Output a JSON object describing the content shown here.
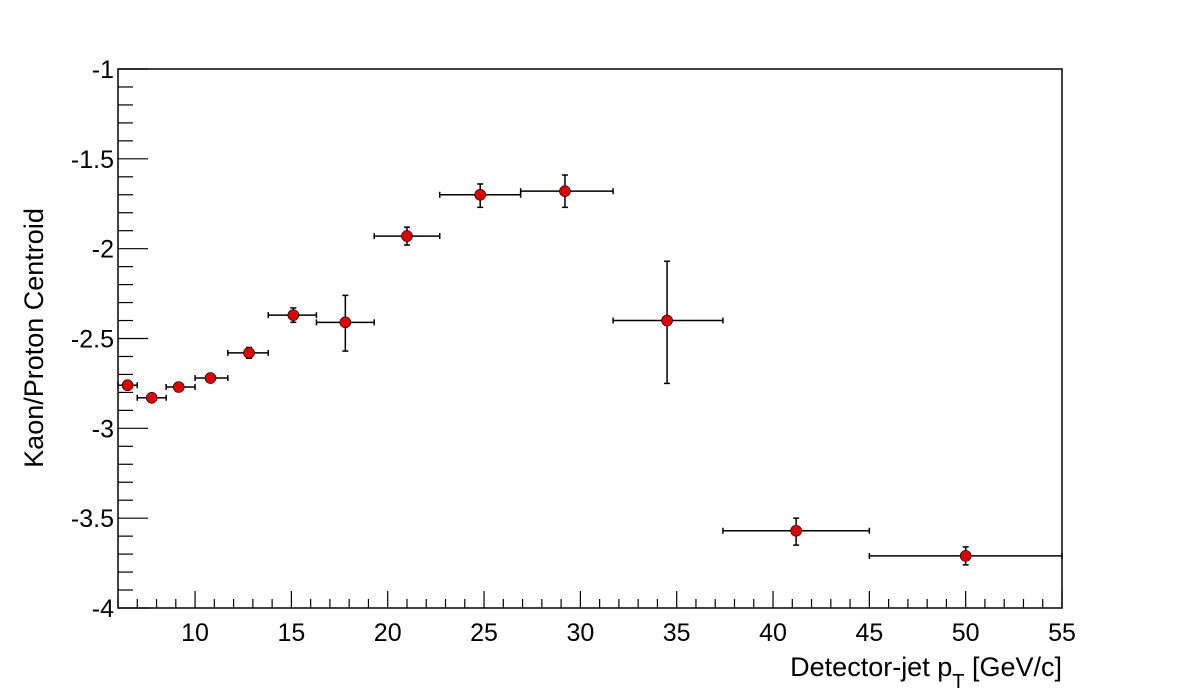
{
  "chart_data": {
    "type": "scatter",
    "title": "",
    "xlabel": "Detector-jet p",
    "xlabel_sub": "T",
    "xlabel_unit": " [GeV/c]",
    "ylabel": "Kaon/Proton Centroid",
    "xlim": [
      6,
      55
    ],
    "ylim": [
      -4,
      -1
    ],
    "x_ticks": [
      10,
      15,
      20,
      25,
      30,
      35,
      40,
      45,
      50,
      55
    ],
    "y_ticks": [
      -4,
      -3.5,
      -3,
      -2.5,
      -2,
      -1.5,
      -1
    ],
    "x_tick_labels": [
      "10",
      "15",
      "20",
      "25",
      "30",
      "35",
      "40",
      "45",
      "50",
      "55"
    ],
    "y_tick_labels": [
      "-4",
      "-3.5",
      "-3",
      "-2.5",
      "-2",
      "-1.5",
      "-1"
    ],
    "grid": false,
    "marker_color": "#dd0000",
    "series": [
      {
        "points": [
          {
            "x": 6.5,
            "y": -2.76,
            "xlo": 6.0,
            "xhi": 7.0,
            "ylo": -2.78,
            "yhi": -2.74
          },
          {
            "x": 7.75,
            "y": -2.83,
            "xlo": 7.0,
            "xhi": 8.5,
            "ylo": -2.85,
            "yhi": -2.81
          },
          {
            "x": 9.15,
            "y": -2.77,
            "xlo": 8.5,
            "xhi": 10.0,
            "ylo": -2.79,
            "yhi": -2.75
          },
          {
            "x": 10.8,
            "y": -2.72,
            "xlo": 10.0,
            "xhi": 11.7,
            "ylo": -2.74,
            "yhi": -2.7
          },
          {
            "x": 12.8,
            "y": -2.58,
            "xlo": 11.7,
            "xhi": 13.8,
            "ylo": -2.61,
            "yhi": -2.55
          },
          {
            "x": 15.1,
            "y": -2.37,
            "xlo": 13.8,
            "xhi": 16.3,
            "ylo": -2.41,
            "yhi": -2.33
          },
          {
            "x": 17.8,
            "y": -2.41,
            "xlo": 16.3,
            "xhi": 19.3,
            "ylo": -2.57,
            "yhi": -2.26
          },
          {
            "x": 21.0,
            "y": -1.93,
            "xlo": 19.3,
            "xhi": 22.7,
            "ylo": -1.98,
            "yhi": -1.88
          },
          {
            "x": 24.8,
            "y": -1.7,
            "xlo": 22.7,
            "xhi": 26.9,
            "ylo": -1.77,
            "yhi": -1.64
          },
          {
            "x": 29.2,
            "y": -1.68,
            "xlo": 26.9,
            "xhi": 31.7,
            "ylo": -1.77,
            "yhi": -1.59
          },
          {
            "x": 34.5,
            "y": -2.4,
            "xlo": 31.7,
            "xhi": 37.4,
            "ylo": -2.75,
            "yhi": -2.07
          },
          {
            "x": 41.2,
            "y": -3.57,
            "xlo": 37.4,
            "xhi": 45.0,
            "ylo": -3.65,
            "yhi": -3.5
          },
          {
            "x": 50.0,
            "y": -3.71,
            "xlo": 45.0,
            "xhi": 55.0,
            "ylo": -3.76,
            "yhi": -3.66
          }
        ]
      }
    ]
  }
}
